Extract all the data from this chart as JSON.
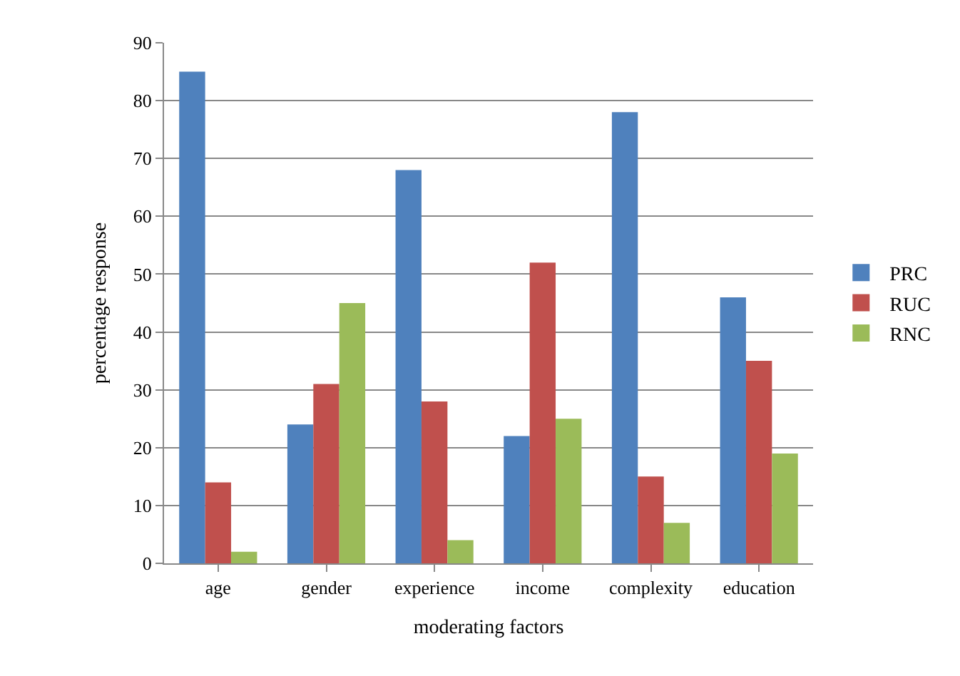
{
  "chart_data": {
    "type": "bar",
    "xlabel": "moderating factors",
    "ylabel": "percentage response",
    "categories": [
      "age",
      "gender",
      "experience",
      "income",
      "complexity",
      "education"
    ],
    "series": [
      {
        "name": "PRC",
        "color": "#4f81bd",
        "values": [
          85,
          24,
          68,
          22,
          78,
          46
        ]
      },
      {
        "name": "RUC",
        "color": "#c0504d",
        "values": [
          14,
          31,
          28,
          52,
          15,
          35
        ]
      },
      {
        "name": "RNC",
        "color": "#9bbb59",
        "values": [
          2,
          45,
          4,
          25,
          7,
          19
        ]
      }
    ],
    "ylim": [
      0,
      90
    ],
    "yticks": [
      0,
      10,
      20,
      30,
      40,
      50,
      60,
      70,
      80,
      90
    ],
    "grid": "y",
    "legend": "right"
  }
}
